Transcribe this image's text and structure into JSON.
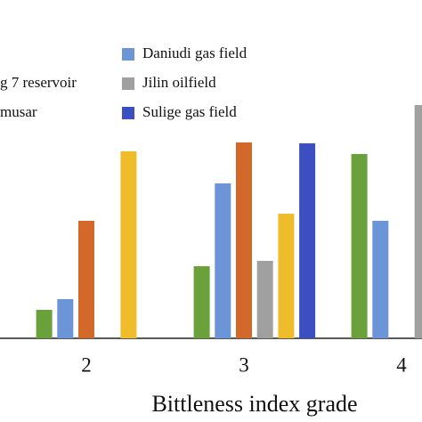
{
  "chart_data": {
    "type": "bar",
    "x_label": "Bittleness index grade",
    "categories": [
      "2",
      "3",
      "4"
    ],
    "ylim": [
      0,
      380
    ],
    "series": [
      {
        "color": "#6aa13a",
        "values": [
          32,
          81,
          207
        ]
      },
      {
        "name": "Daniudi gas field",
        "color": "#6b95d6",
        "values": [
          44,
          174,
          132
        ]
      },
      {
        "name": "g 7 reservoir",
        "color": "#d2692b",
        "values": [
          132,
          220,
          0
        ]
      },
      {
        "name": "Jilin oilfield",
        "color": "#a0a0a0",
        "values": [
          0,
          87,
          262
        ]
      },
      {
        "name": "musar",
        "color": "#efbd2c",
        "values": [
          210,
          140,
          null
        ]
      },
      {
        "name": "Sulige gas field",
        "color": "#3b4fc0",
        "values": [
          0,
          219,
          null
        ]
      }
    ]
  }
}
